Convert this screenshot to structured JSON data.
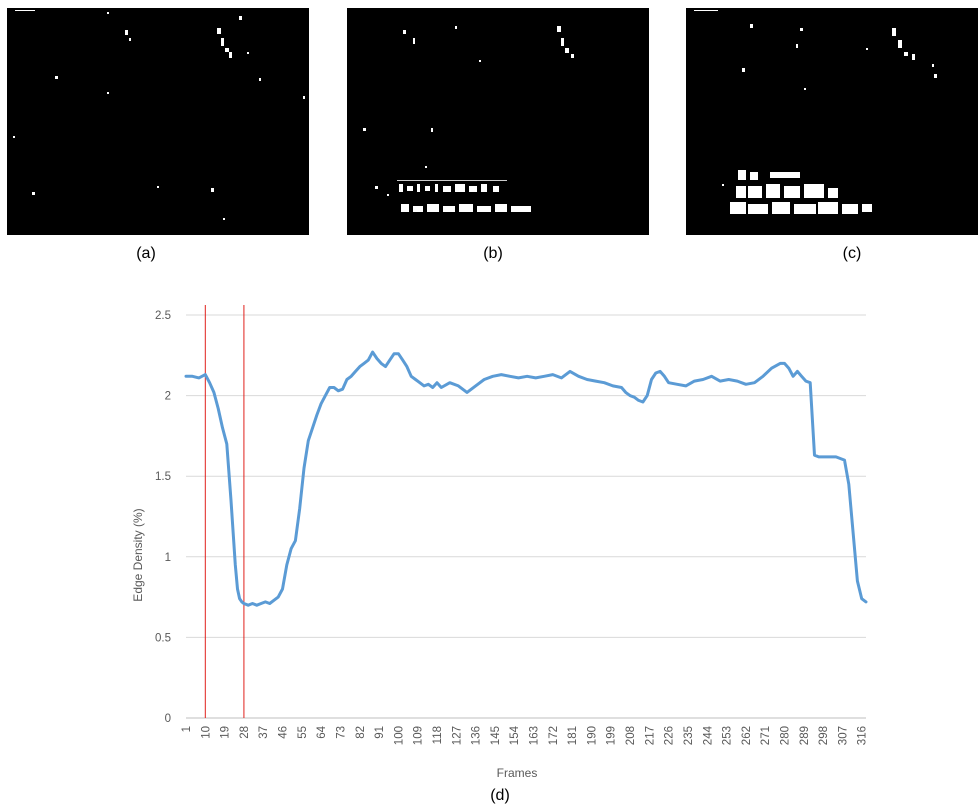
{
  "captions": {
    "a": "(a)",
    "b": "(b)",
    "c": "(c)",
    "d": "(d)"
  },
  "chart_data": {
    "type": "line",
    "title": "",
    "xlabel": "Frames",
    "ylabel": "Edge Density (%)",
    "xlim": [
      1,
      318
    ],
    "ylim": [
      0,
      2.5
    ],
    "y_ticks": [
      "0",
      "0.5",
      "1",
      "1.5",
      "2",
      "2.5"
    ],
    "x_ticks": [
      "1",
      "10",
      "19",
      "28",
      "37",
      "46",
      "55",
      "64",
      "73",
      "82",
      "91",
      "100",
      "109",
      "118",
      "127",
      "136",
      "145",
      "154",
      "163",
      "172",
      "181",
      "190",
      "199",
      "208",
      "217",
      "226",
      "235",
      "244",
      "253",
      "262",
      "271",
      "280",
      "289",
      "298",
      "307",
      "316"
    ],
    "grid": "horizontal",
    "legend": "none",
    "colors": {
      "line": "#5b9bd5",
      "markers": "#e0201b",
      "grid": "#d9d9d9"
    },
    "vertical_markers": [
      10,
      28
    ],
    "series": [
      {
        "x": [
          1,
          4,
          7,
          10,
          12,
          14,
          16,
          18,
          20,
          22,
          24,
          25,
          26,
          27,
          28,
          30,
          32,
          34,
          36,
          38,
          40,
          42,
          44,
          46,
          48,
          50,
          52,
          54,
          56,
          58,
          60,
          62,
          64,
          66,
          68,
          70,
          72,
          74,
          76,
          78,
          80,
          82,
          84,
          86,
          88,
          90,
          92,
          94,
          96,
          98,
          100,
          102,
          104,
          106,
          108,
          110,
          112,
          114,
          116,
          118,
          120,
          124,
          128,
          132,
          136,
          140,
          144,
          148,
          152,
          156,
          160,
          164,
          168,
          172,
          176,
          180,
          184,
          188,
          192,
          196,
          200,
          204,
          206,
          208,
          210,
          212,
          214,
          216,
          218,
          220,
          222,
          224,
          226,
          230,
          234,
          238,
          242,
          246,
          250,
          254,
          258,
          262,
          266,
          270,
          274,
          278,
          280,
          282,
          284,
          286,
          288,
          290,
          292,
          294,
          296,
          298,
          300,
          304,
          308,
          310,
          312,
          314,
          316,
          318
        ],
        "y": [
          2.12,
          2.12,
          2.11,
          2.13,
          2.08,
          2.02,
          1.92,
          1.8,
          1.7,
          1.35,
          0.95,
          0.8,
          0.74,
          0.72,
          0.71,
          0.7,
          0.71,
          0.7,
          0.71,
          0.72,
          0.71,
          0.73,
          0.75,
          0.8,
          0.95,
          1.05,
          1.1,
          1.3,
          1.55,
          1.72,
          1.8,
          1.88,
          1.95,
          2.0,
          2.05,
          2.05,
          2.03,
          2.04,
          2.1,
          2.12,
          2.15,
          2.18,
          2.2,
          2.22,
          2.27,
          2.23,
          2.2,
          2.18,
          2.22,
          2.26,
          2.26,
          2.22,
          2.18,
          2.12,
          2.1,
          2.08,
          2.06,
          2.07,
          2.05,
          2.08,
          2.05,
          2.08,
          2.06,
          2.02,
          2.06,
          2.1,
          2.12,
          2.13,
          2.12,
          2.11,
          2.12,
          2.11,
          2.12,
          2.13,
          2.11,
          2.15,
          2.12,
          2.1,
          2.09,
          2.08,
          2.06,
          2.05,
          2.02,
          2.0,
          1.99,
          1.97,
          1.96,
          2.0,
          2.1,
          2.14,
          2.15,
          2.12,
          2.08,
          2.07,
          2.06,
          2.09,
          2.1,
          2.12,
          2.09,
          2.1,
          2.09,
          2.07,
          2.08,
          2.12,
          2.17,
          2.2,
          2.2,
          2.17,
          2.12,
          2.15,
          2.12,
          2.09,
          2.08,
          1.63,
          1.62,
          1.62,
          1.62,
          1.62,
          1.6,
          1.45,
          1.15,
          0.85,
          0.74,
          0.72
        ]
      }
    ]
  }
}
